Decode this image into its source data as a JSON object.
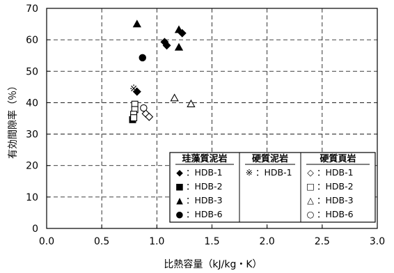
{
  "chart_data": {
    "type": "scatter",
    "xlabel": "比熱容量（kJ/kg・K）",
    "ylabel": "有効間隙率（％）",
    "xlim": [
      0.0,
      3.0
    ],
    "ylim": [
      0,
      70
    ],
    "x_ticks": [
      "0.0",
      "0.5",
      "1.0",
      "1.5",
      "2.0",
      "2.5",
      "3.0"
    ],
    "y_ticks": [
      "0",
      "10",
      "20",
      "30",
      "40",
      "50",
      "60",
      "70"
    ],
    "grid": "dashed",
    "legend_position": "bottom-right",
    "legend": {
      "groups": [
        {
          "header": "珪藻質泥岩",
          "entries": [
            {
              "marker": "◆",
              "label": "：HDB-1"
            },
            {
              "marker": "■",
              "label": "：HDB-2"
            },
            {
              "marker": "▲",
              "label": "：HDB-3"
            },
            {
              "marker": "●",
              "label": "：HDB-6"
            }
          ]
        },
        {
          "header": "硬質泥岩",
          "entries": [
            {
              "marker": "※",
              "label": "：HDB-1"
            }
          ]
        },
        {
          "header": "硬質頁岩",
          "entries": [
            {
              "marker": "◇",
              "label": "：HDB-1"
            },
            {
              "marker": "□",
              "label": "：HDB-2"
            },
            {
              "marker": "△",
              "label": "：HDB-3"
            },
            {
              "marker": "○",
              "label": "：HDB-6"
            }
          ]
        }
      ]
    },
    "series": [
      {
        "group": "珪藻質泥岩",
        "name": "HDB-1",
        "shape": "diamond",
        "filled": true,
        "points": [
          [
            1.07,
            59.3
          ],
          [
            1.09,
            58.2
          ],
          [
            1.23,
            62.1
          ],
          [
            0.82,
            43.5
          ]
        ]
      },
      {
        "group": "珪藻質泥岩",
        "name": "HDB-2",
        "shape": "square",
        "filled": true,
        "points": [
          [
            0.78,
            34.6
          ]
        ]
      },
      {
        "group": "珪藻質泥岩",
        "name": "HDB-3",
        "shape": "triangle",
        "filled": true,
        "points": [
          [
            0.82,
            65.0
          ],
          [
            1.2,
            63.2
          ],
          [
            1.2,
            57.6
          ]
        ]
      },
      {
        "group": "珪藻質泥岩",
        "name": "HDB-6",
        "shape": "circle",
        "filled": true,
        "points": [
          [
            0.87,
            54.3
          ]
        ]
      },
      {
        "group": "硬質泥岩",
        "name": "HDB-1",
        "shape": "kome",
        "filled": true,
        "points": [
          [
            0.79,
            44.5
          ]
        ]
      },
      {
        "group": "硬質頁岩",
        "name": "HDB-1",
        "shape": "diamond",
        "filled": false,
        "points": [
          [
            0.9,
            36.5
          ],
          [
            0.93,
            35.5
          ]
        ]
      },
      {
        "group": "硬質頁岩",
        "name": "HDB-2",
        "shape": "square",
        "filled": false,
        "points": [
          [
            0.8,
            39.5
          ],
          [
            0.8,
            37.8
          ],
          [
            0.79,
            36.3
          ],
          [
            0.79,
            35.2
          ]
        ]
      },
      {
        "group": "硬質頁岩",
        "name": "HDB-3",
        "shape": "triangle",
        "filled": false,
        "points": [
          [
            1.16,
            41.5
          ],
          [
            1.31,
            39.6
          ]
        ]
      },
      {
        "group": "硬質頁岩",
        "name": "HDB-6",
        "shape": "circle",
        "filled": false,
        "points": [
          [
            0.88,
            38.3
          ]
        ]
      }
    ]
  }
}
